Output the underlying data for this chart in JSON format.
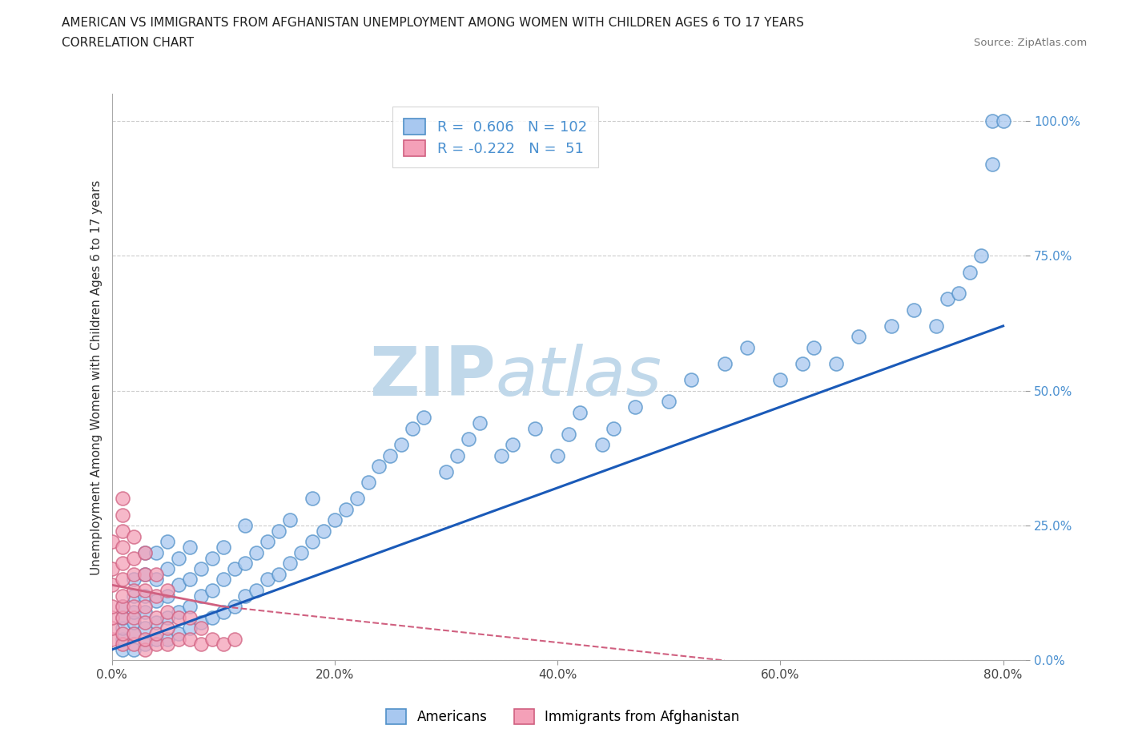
{
  "title_line1": "AMERICAN VS IMMIGRANTS FROM AFGHANISTAN UNEMPLOYMENT AMONG WOMEN WITH CHILDREN AGES 6 TO 17 YEARS",
  "title_line2": "CORRELATION CHART",
  "source_text": "Source: ZipAtlas.com",
  "ylabel": "Unemployment Among Women with Children Ages 6 to 17 years",
  "xlim": [
    0.0,
    0.82
  ],
  "ylim": [
    0.0,
    1.05
  ],
  "xtick_labels": [
    "0.0%",
    "20.0%",
    "40.0%",
    "60.0%",
    "80.0%"
  ],
  "xtick_values": [
    0.0,
    0.2,
    0.4,
    0.6,
    0.8
  ],
  "ytick_labels": [
    "0.0%",
    "25.0%",
    "50.0%",
    "75.0%",
    "100.0%"
  ],
  "ytick_values": [
    0.0,
    0.25,
    0.5,
    0.75,
    1.0
  ],
  "blue_R": 0.606,
  "blue_N": 102,
  "pink_R": -0.222,
  "pink_N": 51,
  "blue_fill": "#a8c8f0",
  "blue_edge": "#5090c8",
  "pink_fill": "#f4a0b8",
  "pink_edge": "#d06080",
  "trend_blue_color": "#1a5ab8",
  "trend_pink_color": "#d06080",
  "watermark_zip": "ZIP",
  "watermark_atlas": "atlas",
  "watermark_color": "#c0d8ea",
  "legend_blue_label": "Americans",
  "legend_pink_label": "Immigrants from Afghanistan",
  "grid_color": "#cccccc",
  "background_color": "#ffffff",
  "tick_label_color": "#4a90d0",
  "title_fontsize": 11,
  "legend_fontsize": 13,
  "blue_x": [
    0.01,
    0.01,
    0.01,
    0.01,
    0.01,
    0.02,
    0.02,
    0.02,
    0.02,
    0.02,
    0.02,
    0.03,
    0.03,
    0.03,
    0.03,
    0.03,
    0.03,
    0.04,
    0.04,
    0.04,
    0.04,
    0.04,
    0.05,
    0.05,
    0.05,
    0.05,
    0.05,
    0.06,
    0.06,
    0.06,
    0.06,
    0.07,
    0.07,
    0.07,
    0.07,
    0.08,
    0.08,
    0.08,
    0.09,
    0.09,
    0.09,
    0.1,
    0.1,
    0.1,
    0.11,
    0.11,
    0.12,
    0.12,
    0.12,
    0.13,
    0.13,
    0.14,
    0.14,
    0.15,
    0.15,
    0.16,
    0.16,
    0.17,
    0.18,
    0.18,
    0.19,
    0.2,
    0.21,
    0.22,
    0.23,
    0.24,
    0.25,
    0.26,
    0.27,
    0.28,
    0.3,
    0.31,
    0.32,
    0.33,
    0.35,
    0.36,
    0.38,
    0.4,
    0.41,
    0.42,
    0.44,
    0.45,
    0.47,
    0.5,
    0.52,
    0.55,
    0.57,
    0.6,
    0.62,
    0.63,
    0.65,
    0.67,
    0.7,
    0.72,
    0.74,
    0.75,
    0.76,
    0.77,
    0.78,
    0.79,
    0.79,
    0.8
  ],
  "blue_y": [
    0.02,
    0.04,
    0.06,
    0.08,
    0.1,
    0.02,
    0.05,
    0.07,
    0.09,
    0.12,
    0.15,
    0.03,
    0.06,
    0.09,
    0.12,
    0.16,
    0.2,
    0.04,
    0.07,
    0.11,
    0.15,
    0.2,
    0.04,
    0.08,
    0.12,
    0.17,
    0.22,
    0.05,
    0.09,
    0.14,
    0.19,
    0.06,
    0.1,
    0.15,
    0.21,
    0.07,
    0.12,
    0.17,
    0.08,
    0.13,
    0.19,
    0.09,
    0.15,
    0.21,
    0.1,
    0.17,
    0.12,
    0.18,
    0.25,
    0.13,
    0.2,
    0.15,
    0.22,
    0.16,
    0.24,
    0.18,
    0.26,
    0.2,
    0.22,
    0.3,
    0.24,
    0.26,
    0.28,
    0.3,
    0.33,
    0.36,
    0.38,
    0.4,
    0.43,
    0.45,
    0.35,
    0.38,
    0.41,
    0.44,
    0.38,
    0.4,
    0.43,
    0.38,
    0.42,
    0.46,
    0.4,
    0.43,
    0.47,
    0.48,
    0.52,
    0.55,
    0.58,
    0.52,
    0.55,
    0.58,
    0.55,
    0.6,
    0.62,
    0.65,
    0.62,
    0.67,
    0.68,
    0.72,
    0.75,
    0.92,
    1.0,
    1.0
  ],
  "pink_x": [
    0.0,
    0.0,
    0.0,
    0.0,
    0.0,
    0.0,
    0.0,
    0.01,
    0.01,
    0.01,
    0.01,
    0.01,
    0.01,
    0.01,
    0.01,
    0.01,
    0.01,
    0.02,
    0.02,
    0.02,
    0.02,
    0.02,
    0.02,
    0.02,
    0.02,
    0.03,
    0.03,
    0.03,
    0.03,
    0.03,
    0.03,
    0.03,
    0.04,
    0.04,
    0.04,
    0.04,
    0.04,
    0.05,
    0.05,
    0.05,
    0.05,
    0.06,
    0.06,
    0.07,
    0.07,
    0.08,
    0.08,
    0.09,
    0.1,
    0.11,
    0.01
  ],
  "pink_y": [
    0.04,
    0.06,
    0.08,
    0.1,
    0.14,
    0.17,
    0.22,
    0.03,
    0.05,
    0.08,
    0.1,
    0.12,
    0.15,
    0.18,
    0.21,
    0.24,
    0.27,
    0.03,
    0.05,
    0.08,
    0.1,
    0.13,
    0.16,
    0.19,
    0.23,
    0.02,
    0.04,
    0.07,
    0.1,
    0.13,
    0.16,
    0.2,
    0.03,
    0.05,
    0.08,
    0.12,
    0.16,
    0.03,
    0.06,
    0.09,
    0.13,
    0.04,
    0.08,
    0.04,
    0.08,
    0.03,
    0.06,
    0.04,
    0.03,
    0.04,
    0.3
  ],
  "blue_trend_x0": 0.0,
  "blue_trend_y0": 0.02,
  "blue_trend_x1": 0.8,
  "blue_trend_y1": 0.62,
  "pink_trend_x0": 0.0,
  "pink_trend_y0": 0.14,
  "pink_trend_x1": 0.55,
  "pink_trend_y1": 0.0
}
